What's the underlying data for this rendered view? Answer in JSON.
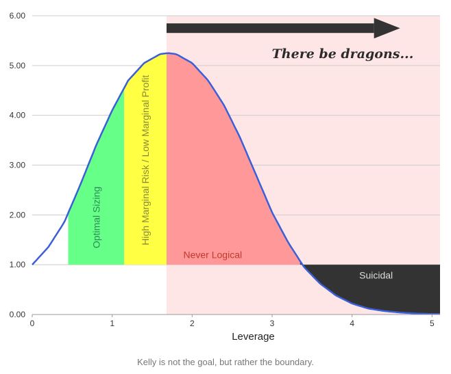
{
  "chart_data": {
    "type": "area",
    "xlabel": "Leverage",
    "ylabel": "",
    "xlim": [
      0,
      5.1
    ],
    "ylim": [
      0,
      6
    ],
    "x_ticks": [
      0,
      1,
      2,
      3,
      4,
      5
    ],
    "y_ticks": [
      "0.00",
      "1.00",
      "2.00",
      "3.00",
      "4.00",
      "5.00",
      "6.00"
    ],
    "grid": true,
    "curve": {
      "color": "#3b5fd9",
      "x": [
        0,
        0.2,
        0.4,
        0.6,
        0.8,
        1.0,
        1.2,
        1.4,
        1.6,
        1.7,
        1.8,
        2.0,
        2.2,
        2.4,
        2.6,
        2.8,
        3.0,
        3.2,
        3.4,
        3.6,
        3.8,
        4.0,
        4.2,
        4.4,
        4.6,
        4.8,
        5.0,
        5.1
      ],
      "y": [
        1.0,
        1.35,
        1.85,
        2.6,
        3.4,
        4.1,
        4.7,
        5.05,
        5.23,
        5.25,
        5.23,
        5.05,
        4.7,
        4.2,
        3.55,
        2.8,
        2.05,
        1.45,
        0.95,
        0.62,
        0.38,
        0.22,
        0.12,
        0.07,
        0.04,
        0.02,
        0.01,
        0.01
      ]
    },
    "zones": [
      {
        "label": "Optimal Sizing",
        "x_start": 0.45,
        "x_end": 1.15,
        "color": "#66ff88",
        "text_color": "#2e8b57",
        "orientation": "vertical"
      },
      {
        "label": "High Marginal Risk / Low Marginal Profit",
        "x_start": 1.15,
        "x_end": 1.68,
        "color": "#ffff44",
        "text_color": "#8a8a3a",
        "orientation": "vertical"
      },
      {
        "label": "Never Logical",
        "x_start": 1.68,
        "x_end": 3.35,
        "color": "#ff9999",
        "text_color": "#c0392b",
        "orientation": "horizontal"
      },
      {
        "label": "Suicidal",
        "x_start": 3.35,
        "x_end": 5.1,
        "color": "#333333",
        "text_color": "#dddddd",
        "orientation": "horizontal"
      }
    ],
    "danger_region": {
      "x_start": 1.68,
      "x_end": 5.1,
      "color": "#ffe6e6"
    },
    "annotation": {
      "text": "There be dragons...",
      "arrow_x_start": 1.68,
      "arrow_x_end": 4.6,
      "arrow_y": 5.75
    }
  },
  "caption": "Kelly is not the goal, but rather the boundary."
}
